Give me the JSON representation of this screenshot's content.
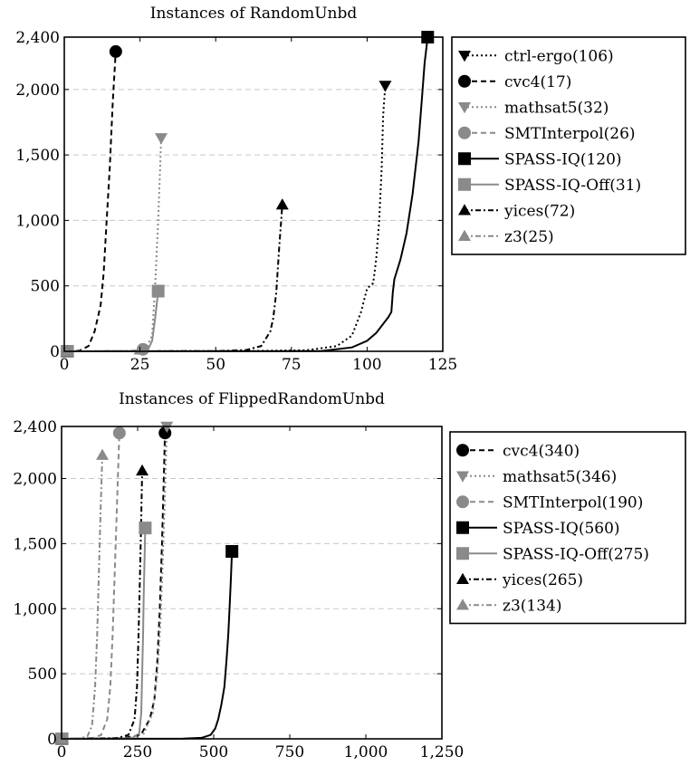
{
  "chart_data": [
    {
      "type": "line",
      "title": "Instances of RandomUnbd",
      "xlabel": "",
      "ylabel": "",
      "xlim": [
        0,
        125
      ],
      "ylim": [
        0,
        2400
      ],
      "xticks": [
        0,
        25,
        50,
        75,
        100,
        125
      ],
      "xtick_labels": [
        "0",
        "25",
        "50",
        "75",
        "100",
        "125"
      ],
      "yticks": [
        0,
        500,
        1000,
        1500,
        2000,
        2400
      ],
      "ytick_labels": [
        "0",
        "500",
        "1,000",
        "1,500",
        "2,000",
        "2,400"
      ],
      "grid": "horizontal dashed",
      "legend_position": "right",
      "series": [
        {
          "name": "ctrl-ergo(106)",
          "color": "#000000",
          "dash": "2,3",
          "marker": "triangle-down",
          "points": [
            [
              1,
              0
            ],
            [
              60,
              2
            ],
            [
              80,
              8
            ],
            [
              90,
              40
            ],
            [
              95,
              120
            ],
            [
              98,
              300
            ],
            [
              100,
              480
            ],
            [
              102,
              520
            ],
            [
              103,
              700
            ],
            [
              104,
              1000
            ],
            [
              104.8,
              1400
            ],
            [
              105.3,
              1800
            ],
            [
              106,
              2030
            ]
          ]
        },
        {
          "name": "cvc4(17)",
          "color": "#000000",
          "dash": "6,4",
          "marker": "circle",
          "points": [
            [
              1,
              0
            ],
            [
              5,
              5
            ],
            [
              8,
              40
            ],
            [
              10,
              150
            ],
            [
              12,
              350
            ],
            [
              13,
              600
            ],
            [
              14,
              1000
            ],
            [
              15,
              1400
            ],
            [
              16,
              1900
            ],
            [
              17,
              2290
            ]
          ]
        },
        {
          "name": "mathsat5(32)",
          "color": "#8a8a8a",
          "dash": "2,3",
          "marker": "triangle-down",
          "points": [
            [
              1,
              0
            ],
            [
              24,
              2
            ],
            [
              27,
              20
            ],
            [
              29,
              120
            ],
            [
              30,
              500
            ],
            [
              31,
              1000
            ],
            [
              31.5,
              1300
            ],
            [
              32,
              1630
            ]
          ]
        },
        {
          "name": "SMTInterpol(26)",
          "color": "#8a8a8a",
          "dash": "6,4",
          "marker": "circle",
          "points": [
            [
              1,
              0
            ],
            [
              20,
              2
            ],
            [
              24,
              5
            ],
            [
              26,
              15
            ]
          ]
        },
        {
          "name": "SPASS-IQ(120)",
          "color": "#000000",
          "dash": "",
          "marker": "square",
          "points": [
            [
              1,
              0
            ],
            [
              70,
              1
            ],
            [
              85,
              3
            ],
            [
              95,
              30
            ],
            [
              100,
              80
            ],
            [
              103,
              140
            ],
            [
              105,
              200
            ],
            [
              107,
              260
            ],
            [
              108,
              300
            ],
            [
              108.5,
              450
            ],
            [
              109,
              550
            ],
            [
              111,
              700
            ],
            [
              113,
              900
            ],
            [
              115,
              1200
            ],
            [
              117,
              1600
            ],
            [
              118,
              1900
            ],
            [
              119,
              2200
            ],
            [
              120,
              2400
            ]
          ]
        },
        {
          "name": "SPASS-IQ-Off(31)",
          "color": "#8a8a8a",
          "dash": "",
          "marker": "square",
          "points": [
            [
              1,
              0
            ],
            [
              25,
              2
            ],
            [
              28,
              30
            ],
            [
              29,
              80
            ],
            [
              30,
              250
            ],
            [
              31,
              460
            ]
          ]
        },
        {
          "name": "yices(72)",
          "color": "#000000",
          "dash": "6,3,2,3",
          "marker": "triangle-up",
          "points": [
            [
              1,
              0
            ],
            [
              50,
              2
            ],
            [
              60,
              10
            ],
            [
              65,
              40
            ],
            [
              68,
              150
            ],
            [
              69,
              250
            ],
            [
              70,
              450
            ],
            [
              71,
              800
            ],
            [
              72,
              1120
            ]
          ]
        },
        {
          "name": "z3(25)",
          "color": "#8a8a8a",
          "dash": "6,3,2,3",
          "marker": "triangle-up",
          "points": [
            [
              1,
              0
            ],
            [
              20,
              3
            ],
            [
              23,
              6
            ],
            [
              25,
              12
            ]
          ]
        }
      ]
    },
    {
      "type": "line",
      "title": "Instances of FlippedRandomUnbd",
      "xlabel": "",
      "ylabel": "",
      "xlim": [
        0,
        1250
      ],
      "ylim": [
        0,
        2400
      ],
      "xticks": [
        0,
        250,
        500,
        750,
        1000,
        1250
      ],
      "xtick_labels": [
        "0",
        "250",
        "500",
        "750",
        "1,000",
        "1,250"
      ],
      "yticks": [
        0,
        500,
        1000,
        1500,
        2000,
        2400
      ],
      "ytick_labels": [
        "0",
        "500",
        "1,000",
        "1,500",
        "2,000",
        "2,400"
      ],
      "grid": "horizontal dashed",
      "legend_position": "right",
      "series": [
        {
          "name": "cvc4(340)",
          "color": "#000000",
          "dash": "6,4",
          "marker": "circle",
          "points": [
            [
              1,
              0
            ],
            [
              200,
              5
            ],
            [
              260,
              30
            ],
            [
              290,
              150
            ],
            [
              305,
              300
            ],
            [
              315,
              600
            ],
            [
              323,
              1000
            ],
            [
              330,
              1500
            ],
            [
              336,
              2000
            ],
            [
              340,
              2350
            ]
          ]
        },
        {
          "name": "mathsat5(346)",
          "color": "#8a8a8a",
          "dash": "2,3",
          "marker": "triangle-down",
          "points": [
            [
              1,
              0
            ],
            [
              220,
              5
            ],
            [
              270,
              40
            ],
            [
              300,
              200
            ],
            [
              315,
              500
            ],
            [
              325,
              900
            ],
            [
              333,
              1400
            ],
            [
              340,
              1900
            ],
            [
              346,
              2400
            ]
          ]
        },
        {
          "name": "SMTInterpol(190)",
          "color": "#8a8a8a",
          "dash": "6,4",
          "marker": "circle",
          "points": [
            [
              1,
              0
            ],
            [
              100,
              5
            ],
            [
              130,
              30
            ],
            [
              150,
              150
            ],
            [
              160,
              400
            ],
            [
              168,
              800
            ],
            [
              175,
              1300
            ],
            [
              182,
              1800
            ],
            [
              190,
              2350
            ]
          ]
        },
        {
          "name": "SPASS-IQ(560)",
          "color": "#000000",
          "dash": "",
          "marker": "square",
          "points": [
            [
              1,
              0
            ],
            [
              400,
              2
            ],
            [
              460,
              8
            ],
            [
              490,
              30
            ],
            [
              505,
              80
            ],
            [
              515,
              150
            ],
            [
              525,
              260
            ],
            [
              535,
              400
            ],
            [
              542,
              600
            ],
            [
              548,
              800
            ],
            [
              552,
              1000
            ],
            [
              556,
              1200
            ],
            [
              560,
              1440
            ]
          ]
        },
        {
          "name": "SPASS-IQ-Off(275)",
          "color": "#8a8a8a",
          "dash": "",
          "marker": "square",
          "points": [
            [
              1,
              0
            ],
            [
              230,
              5
            ],
            [
              255,
              40
            ],
            [
              262,
              200
            ],
            [
              265,
              500
            ],
            [
              268,
              800
            ],
            [
              270,
              1100
            ],
            [
              273,
              1400
            ],
            [
              275,
              1620
            ]
          ]
        },
        {
          "name": "yices(265)",
          "color": "#000000",
          "dash": "6,3,2,3",
          "marker": "triangle-up",
          "points": [
            [
              1,
              0
            ],
            [
              180,
              5
            ],
            [
              220,
              30
            ],
            [
              240,
              150
            ],
            [
              248,
              400
            ],
            [
              253,
              800
            ],
            [
              257,
              1200
            ],
            [
              261,
              1600
            ],
            [
              265,
              2060
            ]
          ]
        },
        {
          "name": "z3(134)",
          "color": "#8a8a8a",
          "dash": "6,3,2,3",
          "marker": "triangle-up",
          "points": [
            [
              1,
              0
            ],
            [
              60,
              3
            ],
            [
              85,
              20
            ],
            [
              100,
              100
            ],
            [
              110,
              400
            ],
            [
              117,
              800
            ],
            [
              123,
              1300
            ],
            [
              129,
              1800
            ],
            [
              134,
              2180
            ]
          ]
        }
      ]
    }
  ]
}
